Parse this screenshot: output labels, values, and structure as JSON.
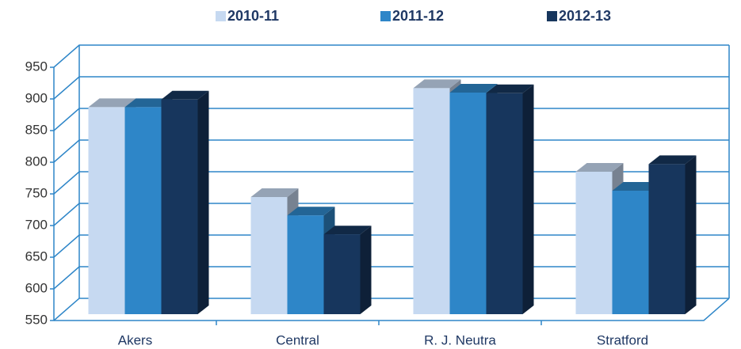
{
  "chart_data": {
    "type": "bar",
    "categories": [
      "Akers",
      "Central",
      "R. J. Neutra",
      "Stratford"
    ],
    "series": [
      {
        "name": "2010-11",
        "color": "#c6d9f1",
        "values": [
          877,
          735,
          907,
          775
        ]
      },
      {
        "name": "2011-12",
        "color": "#2e86c8",
        "values": [
          877,
          706,
          900,
          745
        ]
      },
      {
        "name": "2012-13",
        "color": "#17365d",
        "values": [
          889,
          676,
          899,
          787
        ]
      }
    ],
    "ylim": [
      550,
      950
    ],
    "yticks": [
      550,
      600,
      650,
      700,
      750,
      800,
      850,
      900,
      950
    ],
    "grid": true,
    "legend": "top"
  }
}
